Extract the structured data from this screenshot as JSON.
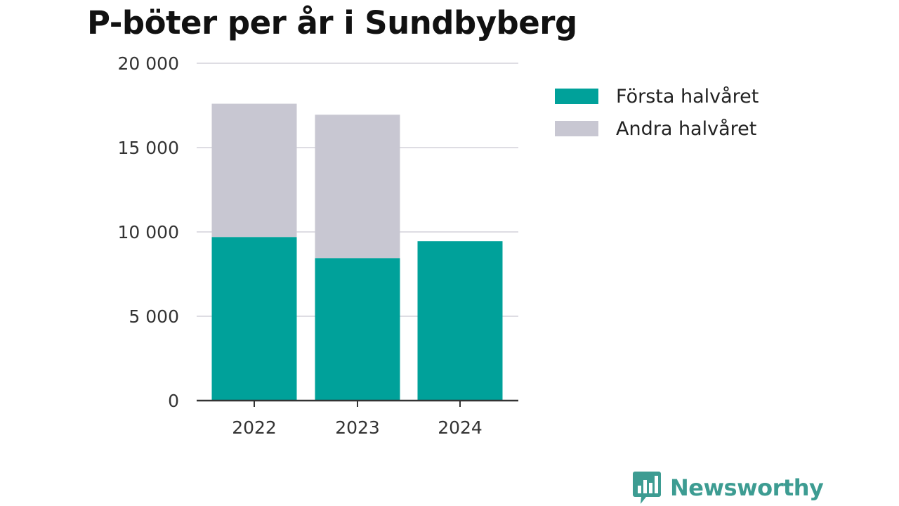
{
  "colors": {
    "first_half": "#00a19a",
    "second_half": "#c8c7d2",
    "grid": "#dedde3",
    "axis": "#333333",
    "brand": "#3d9c92"
  },
  "brand": {
    "name": "Newsworthy",
    "icon": "bar-chart-speech-bubble-icon"
  },
  "chart_data": {
    "type": "bar",
    "stacked": true,
    "title": "P-böter per år i Sundbyberg",
    "xlabel": "",
    "ylabel": "",
    "categories": [
      "2022",
      "2023",
      "2024"
    ],
    "series": [
      {
        "name": "Första halvåret",
        "color": "#00a19a",
        "values": [
          9700,
          8450,
          9450
        ]
      },
      {
        "name": "Andra halvåret",
        "color": "#c8c7d2",
        "values": [
          7900,
          8500,
          null
        ]
      }
    ],
    "ylim": [
      0,
      20000
    ],
    "yticks": [
      0,
      5000,
      10000,
      15000,
      20000
    ],
    "ytick_labels": [
      "0",
      "5 000",
      "10 000",
      "15 000",
      "20 000"
    ],
    "grid": true,
    "legend_position": "right"
  }
}
